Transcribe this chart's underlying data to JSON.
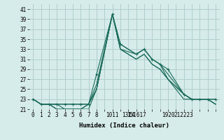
{
  "background_color": "#d6ecea",
  "grid_color": "#b0cece",
  "line_color": "#1a6b5a",
  "xlabel": "Humidex (Indice chaleur)",
  "xlim": [
    -0.5,
    23.5
  ],
  "ylim": [
    21,
    42
  ],
  "xticks": [
    0,
    1,
    2,
    3,
    4,
    5,
    6,
    7,
    8,
    9,
    10,
    11,
    12,
    13,
    14,
    15,
    16,
    17,
    18,
    19,
    20,
    21,
    22,
    23
  ],
  "xtick_labels": [
    "0",
    "1",
    "2",
    "3",
    "4",
    "5",
    "6",
    "7",
    "8",
    "",
    "1011",
    "",
    "1314",
    "151617",
    "",
    "",
    "",
    "1920",
    "",
    "212223",
    "",
    "",
    "",
    ""
  ],
  "yticks": [
    21,
    23,
    25,
    27,
    29,
    31,
    33,
    35,
    37,
    39,
    41
  ],
  "series": [
    {
      "x": [
        0,
        1,
        2,
        3,
        4,
        5,
        6,
        7,
        8,
        10,
        11,
        13,
        14,
        15,
        16,
        17,
        19,
        20,
        21,
        22,
        23
      ],
      "y": [
        23,
        22,
        22,
        22,
        22,
        22,
        22,
        22,
        28,
        40,
        34,
        32,
        33,
        31,
        30,
        29,
        24,
        23,
        23,
        23,
        23
      ],
      "marker": "+"
    },
    {
      "x": [
        0,
        1,
        2,
        3,
        4,
        5,
        6,
        7,
        8,
        10,
        11,
        13,
        14,
        15,
        16,
        17,
        19,
        20,
        21,
        22,
        23
      ],
      "y": [
        23,
        22,
        22,
        22,
        21,
        21,
        21,
        22,
        26,
        40,
        34,
        32,
        33,
        31,
        30,
        28,
        24,
        23,
        23,
        23,
        23
      ],
      "marker": null
    },
    {
      "x": [
        0,
        1,
        2,
        3,
        4,
        5,
        6,
        7,
        8,
        10,
        11,
        13,
        14,
        15,
        16,
        17,
        19,
        20,
        21,
        22,
        23
      ],
      "y": [
        23,
        22,
        22,
        21,
        21,
        21,
        21,
        21,
        25,
        40,
        33,
        32,
        33,
        31,
        30,
        27,
        24,
        23,
        23,
        23,
        22
      ],
      "marker": null
    },
    {
      "x": [
        0,
        1,
        2,
        3,
        4,
        5,
        6,
        7,
        8,
        10,
        11,
        13,
        14,
        15,
        16,
        17,
        19,
        20,
        21,
        22,
        23
      ],
      "y": [
        23,
        22,
        22,
        21,
        21,
        21,
        21,
        22,
        25,
        40,
        33,
        31,
        32,
        30,
        29,
        27,
        23,
        23,
        23,
        23,
        22
      ],
      "marker": null
    },
    {
      "x": [
        0,
        1,
        2,
        3,
        4,
        5,
        6,
        7,
        8,
        10,
        11,
        13,
        14,
        15,
        16,
        17,
        19,
        20,
        21,
        22,
        23
      ],
      "y": [
        23,
        22,
        22,
        22,
        22,
        22,
        22,
        22,
        25,
        40,
        33,
        31,
        32,
        30,
        29,
        27,
        24,
        23,
        23,
        23,
        22
      ],
      "marker": null
    }
  ]
}
